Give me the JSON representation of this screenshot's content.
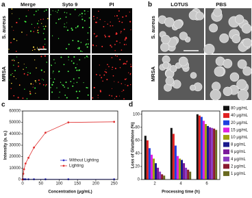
{
  "panels": {
    "a": {
      "label": "a",
      "columns": [
        "Merge",
        "Syto 9",
        "PI"
      ],
      "rows": [
        "S. aureus",
        "MRSA"
      ]
    },
    "b": {
      "label": "b",
      "columns": [
        "LOTUS",
        "PBS"
      ],
      "rows": [
        "S. aureus",
        "MRSA"
      ]
    }
  },
  "chart_data": [
    {
      "label": "c",
      "type": "line",
      "x_label": "Concentration (μg/mL)",
      "y_label": "Intensity (a. u.)",
      "x": [
        0,
        2,
        4,
        8,
        16,
        31,
        62.5,
        125,
        250
      ],
      "xlim": [
        0,
        260
      ],
      "xticks": [
        0,
        50,
        100,
        150,
        200,
        250
      ],
      "ylim": [
        0,
        60000
      ],
      "yticks": [
        0,
        10000,
        20000,
        30000,
        40000,
        50000,
        60000
      ],
      "legend": "center-right",
      "series": [
        {
          "name": "Without Lighting",
          "color": "#3030c8",
          "values": [
            200,
            200,
            200,
            200,
            200,
            200,
            200,
            200,
            200
          ]
        },
        {
          "name": "Lighting",
          "color": "#e03030",
          "values": [
            0,
            5000,
            9000,
            14000,
            19000,
            28000,
            41000,
            50000,
            50500
          ]
        }
      ]
    },
    {
      "label": "d",
      "type": "bar",
      "x_label": "Processing time (h)",
      "y_label": "Loss of Glutathione (%)",
      "categories": [
        "2",
        "4",
        "6"
      ],
      "ylim": [
        0,
        105
      ],
      "yticks": [
        0,
        20,
        40,
        60,
        80,
        100
      ],
      "legend": "right",
      "series": [
        {
          "name": "80 μg/mL",
          "color": "#111111",
          "values": [
            67,
            79,
            100
          ]
        },
        {
          "name": "40 μg/mL",
          "color": "#e02020",
          "values": [
            60,
            70,
            98
          ]
        },
        {
          "name": "20 μg/mL",
          "color": "#2040e0",
          "values": [
            48,
            52,
            96
          ]
        },
        {
          "name": "15 μg/mL",
          "color": "#e020e0",
          "values": [
            38,
            36,
            90
          ]
        },
        {
          "name": "10 μg/mL",
          "color": "#a0a010",
          "values": [
            32,
            32,
            85
          ]
        },
        {
          "name": "8 μg/mL",
          "color": "#1a1a8c",
          "values": [
            25,
            30,
            82
          ]
        },
        {
          "name": "6 μg/mL",
          "color": "#7a1a9a",
          "values": [
            18,
            25,
            80
          ]
        },
        {
          "name": "4 μg/mL",
          "color": "#8a3ac0",
          "values": [
            12,
            18,
            79
          ]
        },
        {
          "name": "2 μg/mL",
          "color": "#8a1a30",
          "values": [
            8,
            15,
            78
          ]
        },
        {
          "name": "1 μg/mL",
          "color": "#6a6a20",
          "values": [
            6,
            12,
            76
          ]
        }
      ]
    }
  ]
}
